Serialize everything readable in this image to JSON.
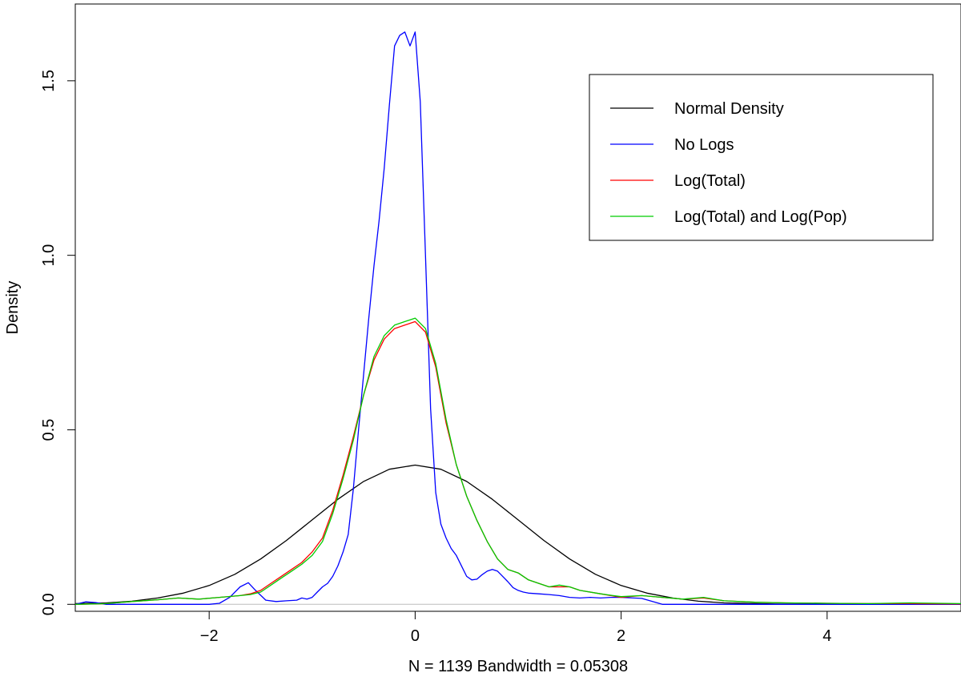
{
  "chart_data": {
    "type": "line",
    "title": "",
    "xlabel": "N = 1139   Bandwidth = 0.05308",
    "ylabel": "Density",
    "xlim": [
      -3.3,
      5.3
    ],
    "ylim": [
      -0.02,
      1.72
    ],
    "xticks": [
      -2,
      0,
      2,
      4
    ],
    "yticks": [
      0.0,
      0.5,
      1.0,
      1.5
    ],
    "xtick_labels": [
      "−2",
      "0",
      "2",
      "4"
    ],
    "ytick_labels": [
      "0.0",
      "0.5",
      "1.0",
      "1.5"
    ],
    "grid": false,
    "zero_baseline": true,
    "legend_position": "top-right",
    "series": [
      {
        "name": "Normal Density",
        "color": "#000000",
        "x": [
          -3.3,
          -3.0,
          -2.75,
          -2.5,
          -2.25,
          -2.0,
          -1.75,
          -1.5,
          -1.25,
          -1.0,
          -0.75,
          -0.5,
          -0.25,
          0.0,
          0.25,
          0.5,
          0.75,
          1.0,
          1.25,
          1.5,
          1.75,
          2.0,
          2.25,
          2.5,
          2.75,
          3.0,
          3.5,
          4.0,
          4.5,
          4.92
        ],
        "y": [
          0.002,
          0.004,
          0.009,
          0.018,
          0.032,
          0.054,
          0.086,
          0.13,
          0.183,
          0.242,
          0.301,
          0.352,
          0.387,
          0.399,
          0.387,
          0.352,
          0.301,
          0.242,
          0.183,
          0.13,
          0.086,
          0.054,
          0.032,
          0.018,
          0.009,
          0.004,
          0.001,
          0.0,
          0.0,
          0.0
        ]
      },
      {
        "name": "No Logs",
        "color": "#0000ff",
        "x": [
          -3.3,
          -3.2,
          -3.1,
          -3.0,
          -2.9,
          -2.7,
          -2.3,
          -2.0,
          -1.9,
          -1.8,
          -1.7,
          -1.62,
          -1.55,
          -1.45,
          -1.35,
          -1.25,
          -1.15,
          -1.1,
          -1.05,
          -1.0,
          -0.95,
          -0.9,
          -0.85,
          -0.8,
          -0.75,
          -0.7,
          -0.65,
          -0.6,
          -0.55,
          -0.5,
          -0.45,
          -0.4,
          -0.35,
          -0.3,
          -0.25,
          -0.2,
          -0.15,
          -0.1,
          -0.05,
          0.0,
          0.05,
          0.1,
          0.15,
          0.2,
          0.25,
          0.3,
          0.35,
          0.4,
          0.45,
          0.5,
          0.55,
          0.6,
          0.65,
          0.7,
          0.75,
          0.8,
          0.85,
          0.9,
          0.95,
          1.0,
          1.05,
          1.1,
          1.2,
          1.3,
          1.4,
          1.5,
          1.6,
          1.7,
          1.8,
          1.9,
          2.0,
          2.2,
          2.4,
          2.6,
          2.8,
          3.0,
          3.5,
          4.0,
          4.5,
          5.0,
          5.3
        ],
        "y": [
          0.0,
          0.007,
          0.005,
          0.0,
          0.0,
          0.0,
          0.0,
          0.0,
          0.003,
          0.02,
          0.05,
          0.062,
          0.04,
          0.012,
          0.008,
          0.01,
          0.012,
          0.018,
          0.015,
          0.02,
          0.035,
          0.05,
          0.06,
          0.08,
          0.11,
          0.15,
          0.2,
          0.33,
          0.5,
          0.66,
          0.82,
          0.97,
          1.1,
          1.25,
          1.43,
          1.6,
          1.63,
          1.64,
          1.6,
          1.64,
          1.44,
          1.0,
          0.56,
          0.32,
          0.23,
          0.19,
          0.16,
          0.14,
          0.11,
          0.08,
          0.07,
          0.072,
          0.085,
          0.095,
          0.1,
          0.095,
          0.08,
          0.065,
          0.048,
          0.04,
          0.035,
          0.032,
          0.03,
          0.028,
          0.025,
          0.02,
          0.018,
          0.02,
          0.018,
          0.02,
          0.02,
          0.017,
          0.0,
          0.0,
          0.0,
          0.0,
          0.0,
          0.0,
          0.0,
          0.0,
          0.0
        ]
      },
      {
        "name": "Log(Total)",
        "color": "#ff0000",
        "x": [
          -3.3,
          -3.0,
          -2.75,
          -2.5,
          -2.3,
          -2.1,
          -1.9,
          -1.7,
          -1.6,
          -1.5,
          -1.4,
          -1.3,
          -1.2,
          -1.1,
          -1.0,
          -0.9,
          -0.8,
          -0.7,
          -0.6,
          -0.5,
          -0.4,
          -0.3,
          -0.2,
          -0.1,
          0.0,
          0.1,
          0.2,
          0.3,
          0.4,
          0.5,
          0.6,
          0.7,
          0.8,
          0.9,
          1.0,
          1.1,
          1.2,
          1.3,
          1.4,
          1.5,
          1.6,
          1.8,
          2.0,
          2.2,
          2.4,
          2.6,
          2.8,
          3.0,
          3.3,
          3.6,
          4.0,
          4.4,
          4.8,
          5.3
        ],
        "y": [
          0.0,
          0.002,
          0.008,
          0.013,
          0.018,
          0.015,
          0.02,
          0.025,
          0.03,
          0.04,
          0.06,
          0.08,
          0.1,
          0.12,
          0.15,
          0.19,
          0.27,
          0.37,
          0.48,
          0.6,
          0.7,
          0.76,
          0.79,
          0.8,
          0.81,
          0.78,
          0.68,
          0.52,
          0.4,
          0.31,
          0.24,
          0.18,
          0.13,
          0.1,
          0.09,
          0.07,
          0.06,
          0.05,
          0.05,
          0.05,
          0.04,
          0.03,
          0.02,
          0.025,
          0.02,
          0.015,
          0.018,
          0.01,
          0.006,
          0.004,
          0.003,
          0.002,
          0.002,
          0.001
        ]
      },
      {
        "name": "Log(Total) and Log(Pop)",
        "color": "#00cc00",
        "x": [
          -3.3,
          -3.0,
          -2.75,
          -2.5,
          -2.3,
          -2.1,
          -1.9,
          -1.7,
          -1.6,
          -1.5,
          -1.4,
          -1.3,
          -1.2,
          -1.1,
          -1.0,
          -0.9,
          -0.8,
          -0.7,
          -0.6,
          -0.5,
          -0.4,
          -0.3,
          -0.2,
          -0.1,
          0.0,
          0.1,
          0.2,
          0.3,
          0.4,
          0.5,
          0.6,
          0.7,
          0.8,
          0.9,
          1.0,
          1.1,
          1.2,
          1.3,
          1.4,
          1.5,
          1.6,
          1.8,
          2.0,
          2.2,
          2.4,
          2.6,
          2.8,
          3.0,
          3.3,
          3.6,
          4.0,
          4.4,
          4.8,
          5.3
        ],
        "y": [
          0.0,
          0.002,
          0.008,
          0.013,
          0.018,
          0.015,
          0.02,
          0.025,
          0.028,
          0.035,
          0.055,
          0.075,
          0.095,
          0.115,
          0.14,
          0.18,
          0.26,
          0.36,
          0.47,
          0.6,
          0.71,
          0.77,
          0.8,
          0.81,
          0.82,
          0.79,
          0.69,
          0.53,
          0.4,
          0.31,
          0.24,
          0.18,
          0.13,
          0.1,
          0.09,
          0.07,
          0.06,
          0.05,
          0.055,
          0.05,
          0.04,
          0.03,
          0.022,
          0.025,
          0.02,
          0.015,
          0.02,
          0.01,
          0.006,
          0.004,
          0.003,
          0.002,
          0.004,
          0.002
        ]
      }
    ]
  }
}
